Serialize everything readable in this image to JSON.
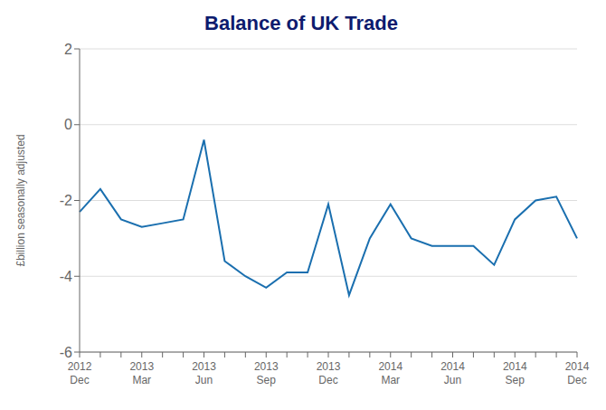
{
  "chart_data": {
    "type": "line",
    "title": "Balance of UK Trade",
    "ylabel": "£billion seasonally adjusted",
    "categories": [
      "2012\nDec",
      null,
      null,
      "2013\nMar",
      null,
      null,
      "2013\nJun",
      null,
      null,
      "2013\nSep",
      null,
      null,
      "2013\nDec",
      null,
      null,
      "2014\nMar",
      null,
      null,
      "2014\nJun",
      null,
      null,
      "2014\nSep",
      null,
      null,
      "2014\nDec"
    ],
    "values": [
      -2.3,
      -1.7,
      -2.5,
      -2.7,
      -2.6,
      -2.5,
      -0.4,
      -3.6,
      -4.0,
      -4.3,
      -3.9,
      -3.9,
      -2.1,
      -4.5,
      -3.0,
      -2.1,
      -3.0,
      -3.2,
      -3.2,
      -3.2,
      -3.7,
      -2.5,
      -2.0,
      -1.9,
      -3.0
    ],
    "color": "#1a6faf",
    "ylim": [
      -6,
      2
    ],
    "yticks": [
      -6,
      -4,
      -2,
      0,
      2
    ],
    "grid": true
  }
}
